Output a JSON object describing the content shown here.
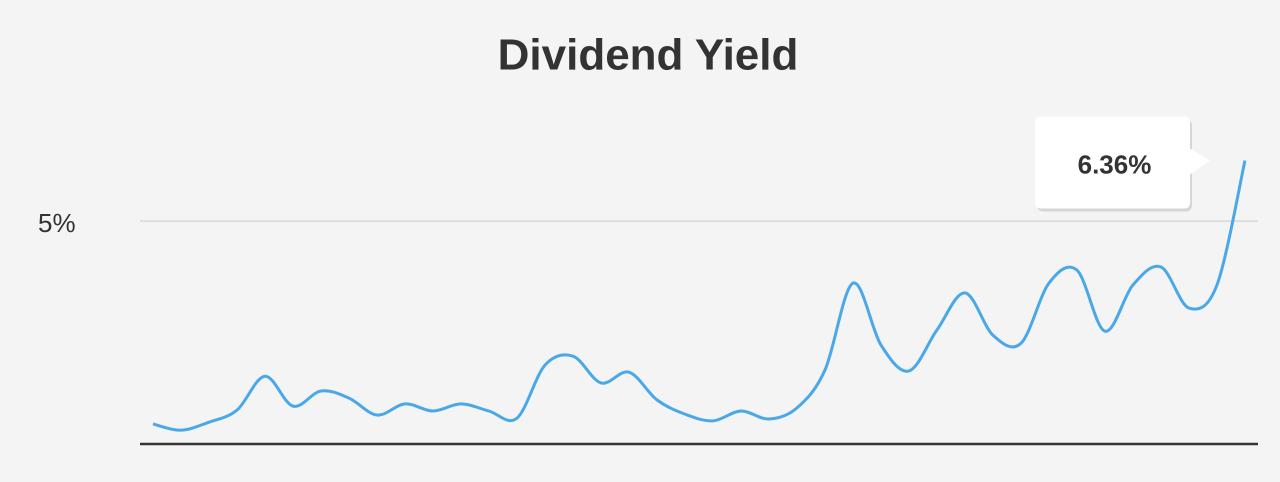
{
  "chart_data": {
    "type": "line",
    "title": "Dividend Yield",
    "series": [
      {
        "name": "Dividend Yield",
        "color": "#4aa8e8",
        "values": [
          0.45,
          0.31,
          0.49,
          0.76,
          1.52,
          0.85,
          1.19,
          1.03,
          0.65,
          0.9,
          0.74,
          0.9,
          0.74,
          0.58,
          1.77,
          1.97,
          1.37,
          1.61,
          0.99,
          0.67,
          0.52,
          0.74,
          0.56,
          0.81,
          1.66,
          3.61,
          2.22,
          1.64,
          2.56,
          3.39,
          2.44,
          2.26,
          3.61,
          3.9,
          2.53,
          3.57,
          3.97,
          3.05,
          3.57,
          6.36
        ],
        "value_labels": [
          null,
          null,
          null,
          null,
          null,
          null,
          null,
          null,
          null,
          null,
          null,
          null,
          null,
          null,
          null,
          null,
          null,
          null,
          null,
          null,
          null,
          null,
          null,
          null,
          null,
          null,
          null,
          null,
          null,
          null,
          null,
          null,
          null,
          null,
          null,
          null,
          null,
          null,
          null,
          "6.36%"
        ]
      }
    ],
    "ylim": [
      0,
      7
    ],
    "yticks": [
      {
        "value": 5,
        "label": "5%"
      }
    ],
    "grid": true
  }
}
